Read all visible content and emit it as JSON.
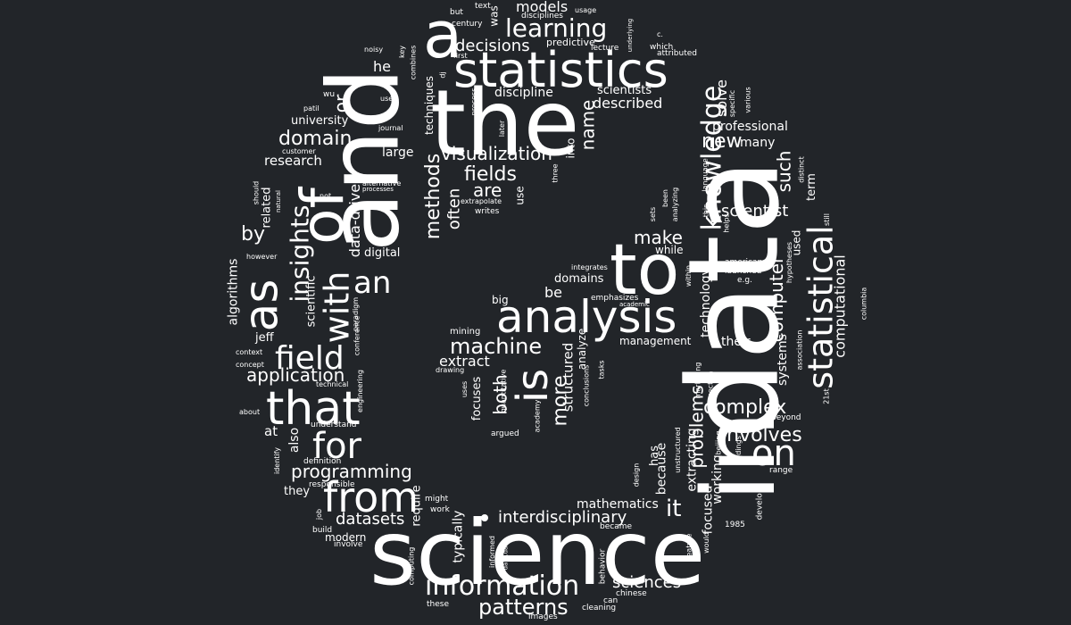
{
  "cloud": {
    "w_data": "data",
    "w_science": "science",
    "w_and": "and",
    "w_the": "the",
    "w_in": "in",
    "w_statistics": "statistics",
    "w_to": "to",
    "w_a": "a",
    "w_of": "of",
    "w_analysis": "analysis",
    "w_that": "that",
    "w_from": "from",
    "w_as": "as",
    "w_is": "is",
    "w_information": "information",
    "w_with": "with",
    "w_statistical": "statistical",
    "w_for": "for",
    "w_on": "on",
    "w_field": "field",
    "w_an": "an",
    "w_knowledge": "knowledge",
    "w_insights": "insights",
    "w_learning": "learning",
    "w_patterns": "patterns",
    "w_machine": "machine",
    "w_complex": "complex",
    "w_involves": "involves",
    "w_methods": "methods",
    "w_fields": "fields",
    "w_visualization": "visualization",
    "w_domain": "domain",
    "w_application": "application",
    "w_programming": "programming",
    "w_interdisciplinary": "interdisciplinary",
    "w_datasets": "datasets",
    "w_sciences": "sciences",
    "w_decisions": "decisions",
    "w_make": "make",
    "w_scientist": "scientist",
    "w_new": "new",
    "w_such": "such",
    "w_by": "by",
    "w_are": "are",
    "w_name": "name",
    "w_both": "both",
    "w_more": "more",
    "w_problems": "problems",
    "w_it": "it",
    "w_computer": "computer",
    "w_computational": "computational",
    "w_datadriven": "data-driven",
    "w_often": "often",
    "w_or": "or",
    "w_models": "models",
    "w_research": "research",
    "w_described": "described",
    "w_solve": "solve",
    "w_extract": "extract",
    "w_mathematics": "mathematics",
    "w_structured": "structured",
    "w_discipline": "discipline",
    "w_professional": "professional",
    "w_algorithms": "algorithms",
    "w_digital": "digital",
    "w_university": "university",
    "w_he": "he",
    "w_be": "be",
    "w_domains": "domains",
    "w_large": "large",
    "w_scientists": "scientists",
    "w_many": "many",
    "w_management": "management",
    "w_their": "their",
    "w_systems": "systems",
    "w_technology": "technology",
    "w_extracting": "extracting",
    "w_because": "because",
    "w_focused": "focused",
    "w_working": "working",
    "w_modern": "modern",
    "w_typically": "typically",
    "w_require": "require",
    "w_scientific": "scientific",
    "w_related": "related",
    "w_jeff": "jeff",
    "w_at": "at",
    "w_also": "also",
    "w_they": "they",
    "w_big": "big",
    "w_while": "while",
    "w_analyze": "analyze",
    "w_focuses": "focuses",
    "w_has": "has",
    "w_term": "term",
    "w_use": "use",
    "w_into": "into",
    "w_predictive": "predictive",
    "w_was": "was",
    "w_mining": "mining",
    "w_techniques": "techniques",
    "w_emphasizes": "emphasizes",
    "w_used": "used",
    "w_writes": "writes",
    "w_american": "american",
    "w_launched": "launched",
    "w_eg": "e.g.",
    "w_integrates": "integrates",
    "w_academic": "academic",
    "w_columbia": "columbia",
    "w_hypotheses": "hypotheses",
    "w_association": "association",
    "w_21st": "21st",
    "w_beyond": "beyond",
    "w_range": "range",
    "w_develop": "develop",
    "w_1985": "1985",
    "w_would": "would",
    "w_feature": "feature",
    "w_became": "became",
    "w_chinese": "chinese",
    "w_can": "can",
    "w_cleaning": "cleaning",
    "w_images": "images",
    "w_these": "these",
    "w_computing": "computing",
    "w_behavior": "behavior",
    "w_informed": "informed",
    "w_work": "work",
    "w_might": "might",
    "w_build": "build",
    "w_involve": "involve",
    "w_job": "job",
    "w_responsible": "responsible",
    "w_definition": "definition",
    "w_identify": "identify",
    "w_understand": "understand",
    "w_about": "about",
    "w_technical": "technical",
    "w_concept": "concept",
    "w_context": "context",
    "w_however": "however",
    "w_paradigm": "paradigm",
    "w_conference": "conference",
    "w_engineering": "engineering",
    "w_argued": "argued",
    "w_academy": "academy",
    "w_quantitative": "quantitative",
    "w_uses": "uses",
    "w_drawing": "drawing",
    "w_conclusions": "conclusions",
    "w_tasks": "tasks",
    "w_design": "design",
    "w_unstructured": "unstructured",
    "w_section": "section",
    "w_marketing": "marketing",
    "w_beijing": "beijing",
    "w_findings": "findings",
    "w_helps": "helps",
    "w_this": "this",
    "w_language": "language",
    "w_sets": "sets",
    "w_been": "been",
    "w_analyzing": "analyzing",
    "w_within": "within",
    "w_distinct": "distinct",
    "w_still": "still",
    "w_various": "various",
    "w_specific": "specific",
    "w_attributed": "attributed",
    "w_which": "which",
    "w_c": "c.",
    "w_underlying": "underlying",
    "w_usage": "usage",
    "w_disciplines": "disciplines",
    "w_text": "text",
    "w_but": "but",
    "w_century": "century",
    "w_lecture": "lecture",
    "w_combines": "combines",
    "w_key": "key",
    "w_noisy": "noisy",
    "w_dj": "dj",
    "w_first": "first",
    "w_process": "process",
    "w_later": "later",
    "w_three": "three",
    "w_user": "user",
    "w_wu": "wu",
    "w_patil": "patil",
    "w_journal": "journal",
    "w_customer": "customer",
    "w_alternative": "alternative",
    "w_processes": "processes",
    "w_extrapolate": "extrapolate",
    "w_not": "not",
    "w_natural": "natural",
    "w_should": "should",
    "w_datadata": "data.data"
  }
}
